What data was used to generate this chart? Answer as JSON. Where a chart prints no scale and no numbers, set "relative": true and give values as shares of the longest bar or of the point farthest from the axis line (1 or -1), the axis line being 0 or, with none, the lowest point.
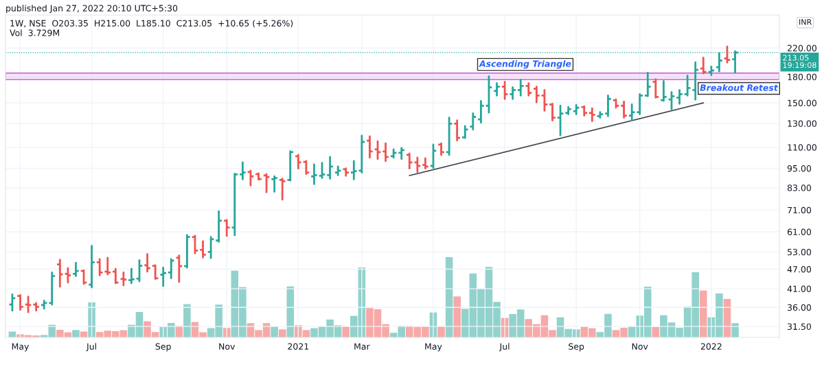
{
  "chart_data": [
    {
      "type": "candlestick",
      "title": "1W, NSE  O203.35  H215.00  L185.10  C213.05  +10.65 (+5.26%)",
      "subtitle": "Vol  3.729M",
      "annotations": [
        "published Jan 27, 2022 20:10 UTC+5:30",
        "INR",
        "Ascending Triangle",
        "Breakout Retest"
      ],
      "x": [
        "2020-04-27",
        "2020-05-04",
        "2020-05-11",
        "2020-05-18",
        "2020-05-25",
        "2020-06-01",
        "2020-06-08",
        "2020-06-15",
        "2020-06-22",
        "2020-06-29",
        "2020-07-06",
        "2020-07-13",
        "2020-07-20",
        "2020-07-27",
        "2020-08-03",
        "2020-08-10",
        "2020-08-17",
        "2020-08-24",
        "2020-08-31",
        "2020-09-07",
        "2020-09-14",
        "2020-09-21",
        "2020-09-28",
        "2020-10-05",
        "2020-10-12",
        "2020-10-19",
        "2020-10-26",
        "2020-11-02",
        "2020-11-09",
        "2020-11-16",
        "2020-11-23",
        "2020-11-30",
        "2020-12-07",
        "2020-12-14",
        "2020-12-21",
        "2020-12-28",
        "2021-01-04",
        "2021-01-11",
        "2021-01-18",
        "2021-01-25",
        "2021-02-01",
        "2021-02-08",
        "2021-02-15",
        "2021-02-22",
        "2021-03-01",
        "2021-03-08",
        "2021-03-15",
        "2021-03-22",
        "2021-03-29",
        "2021-04-05",
        "2021-04-12",
        "2021-04-19",
        "2021-04-26",
        "2021-05-03",
        "2021-05-10",
        "2021-05-17",
        "2021-05-24",
        "2021-05-31",
        "2021-06-07",
        "2021-06-14",
        "2021-06-21",
        "2021-06-28",
        "2021-07-05",
        "2021-07-12",
        "2021-07-19",
        "2021-07-26",
        "2021-08-02",
        "2021-08-09",
        "2021-08-16",
        "2021-08-23",
        "2021-08-30",
        "2021-09-06",
        "2021-09-13",
        "2021-09-20",
        "2021-09-27",
        "2021-10-04",
        "2021-10-11",
        "2021-10-18",
        "2021-10-25",
        "2021-11-01",
        "2021-11-08",
        "2021-11-15",
        "2021-11-22",
        "2021-11-29",
        "2021-12-06",
        "2021-12-13",
        "2021-12-20",
        "2021-12-27",
        "2022-01-03",
        "2022-01-10",
        "2022-01-17",
        "2022-01-24"
      ],
      "ohlc": [
        [
          36.7,
          39.4,
          35.2,
          38.4
        ],
        [
          39.0,
          39.2,
          35.4,
          36.1
        ],
        [
          36.7,
          38.8,
          34.8,
          36.6
        ],
        [
          36.7,
          37.1,
          35.2,
          36.1
        ],
        [
          36.6,
          37.7,
          35.7,
          37.1
        ],
        [
          37.1,
          45.9,
          36.7,
          44.8
        ],
        [
          48.6,
          50.2,
          41.6,
          45.3
        ],
        [
          45.5,
          47.3,
          42.8,
          45.0
        ],
        [
          45.5,
          49.1,
          44.8,
          46.4
        ],
        [
          46.4,
          46.6,
          42.4,
          42.8
        ],
        [
          42.2,
          55.3,
          41.4,
          49.3
        ],
        [
          49.3,
          50.4,
          45.0,
          45.9
        ],
        [
          46.2,
          50.9,
          45.3,
          45.9
        ],
        [
          46.2,
          47.1,
          42.6,
          42.8
        ],
        [
          43.9,
          45.9,
          42.0,
          43.7
        ],
        [
          43.5,
          47.1,
          42.6,
          43.8
        ],
        [
          44.0,
          50.0,
          43.2,
          48.1
        ],
        [
          48.3,
          52.2,
          46.2,
          47.3
        ],
        [
          48.1,
          48.3,
          43.9,
          44.1
        ],
        [
          45.2,
          47.5,
          41.8,
          45.7
        ],
        [
          45.9,
          50.4,
          44.1,
          49.9
        ],
        [
          50.9,
          51.7,
          43.0,
          48.0
        ],
        [
          48.0,
          59.6,
          47.5,
          58.8
        ],
        [
          58.8,
          59.3,
          52.5,
          53.5
        ],
        [
          53.8,
          57.1,
          51.0,
          52.0
        ],
        [
          53.0,
          58.8,
          50.8,
          57.9
        ],
        [
          57.4,
          70.4,
          56.9,
          65.9
        ],
        [
          65.9,
          66.2,
          59.3,
          62.8
        ],
        [
          62.8,
          91.5,
          59.6,
          91.0
        ],
        [
          91.0,
          99.0,
          88.0,
          92.2
        ],
        [
          92.6,
          93.5,
          84.3,
          89.8
        ],
        [
          91.3,
          91.7,
          87.8,
          88.1
        ],
        [
          90.4,
          91.3,
          80.4,
          89.4
        ],
        [
          88.0,
          89.8,
          80.7,
          88.8
        ],
        [
          87.6,
          88.4,
          76.4,
          86.8
        ],
        [
          87.6,
          107.0,
          87.2,
          106.4
        ],
        [
          103.4,
          104.3,
          94.9,
          99.0
        ],
        [
          99.4,
          99.9,
          91.3,
          92.2
        ],
        [
          89.8,
          97.6,
          85.1,
          90.6
        ],
        [
          90.2,
          98.6,
          88.8,
          91.0
        ],
        [
          90.6,
          102.9,
          88.4,
          96.2
        ],
        [
          92.2,
          96.2,
          90.6,
          93.5
        ],
        [
          94.4,
          94.9,
          90.2,
          92.2
        ],
        [
          92.2,
          99.9,
          88.0,
          93.1
        ],
        [
          93.5,
          119.3,
          92.2,
          114.2
        ],
        [
          115.2,
          118.7,
          102.4,
          106.9
        ],
        [
          108.4,
          114.7,
          101.4,
          106.4
        ],
        [
          106.9,
          113.1,
          99.9,
          102.9
        ],
        [
          103.4,
          108.4,
          102.4,
          105.9
        ],
        [
          105.9,
          109.5,
          101.4,
          107.9
        ],
        [
          104.3,
          105.4,
          94.9,
          99.0
        ],
        [
          99.0,
          102.4,
          92.6,
          96.7
        ],
        [
          97.2,
          101.9,
          94.9,
          96.2
        ],
        [
          96.7,
          112.1,
          95.3,
          107.4
        ],
        [
          112.1,
          113.1,
          104.3,
          106.4
        ],
        [
          106.4,
          135.3,
          104.3,
          129.7
        ],
        [
          129.7,
          132.7,
          115.4,
          117.4
        ],
        [
          117.9,
          127.6,
          117.4,
          124.6
        ],
        [
          127.1,
          139.4,
          124.6,
          136.0
        ],
        [
          133.6,
          151.9,
          130.8,
          147.0
        ],
        [
          147.0,
          180.5,
          140.2,
          167.2
        ],
        [
          163.0,
          172.0,
          157.9,
          168.0
        ],
        [
          168.0,
          173.7,
          154.2,
          159.4
        ],
        [
          159.4,
          167.2,
          154.2,
          164.0
        ],
        [
          164.0,
          176.3,
          157.9,
          168.8
        ],
        [
          168.8,
          172.0,
          157.9,
          160.8
        ],
        [
          165.5,
          168.0,
          150.5,
          157.9
        ],
        [
          157.9,
          164.0,
          142.0,
          148.4
        ],
        [
          148.4,
          149.1,
          132.7,
          135.3
        ],
        [
          135.3,
          147.0,
          119.6,
          139.2
        ],
        [
          139.8,
          145.7,
          138.6,
          143.6
        ],
        [
          141.6,
          147.7,
          138.6,
          145.0
        ],
        [
          145.7,
          146.3,
          137.3,
          139.8
        ],
        [
          139.8,
          144.3,
          132.1,
          138.0
        ],
        [
          136.7,
          140.5,
          135.3,
          138.6
        ],
        [
          139.2,
          157.9,
          136.7,
          154.2
        ],
        [
          152.8,
          153.5,
          145.0,
          147.0
        ],
        [
          147.0,
          151.3,
          135.3,
          137.3
        ],
        [
          137.3,
          148.4,
          132.7,
          140.5
        ],
        [
          140.5,
          159.4,
          138.6,
          157.9
        ],
        [
          157.9,
          185.0,
          157.1,
          168.0
        ],
        [
          173.7,
          176.9,
          155.6,
          156.3
        ],
        [
          152.8,
          174.5,
          152.1,
          156.3
        ],
        [
          153.5,
          161.6,
          143.6,
          157.1
        ],
        [
          155.6,
          164.0,
          149.1,
          159.4
        ],
        [
          159.4,
          181.4,
          157.9,
          166.4
        ],
        [
          164.0,
          199.0,
          153.5,
          188.8
        ],
        [
          190.6,
          205.7,
          184.3,
          186.1
        ],
        [
          186.1,
          193.3,
          182.0,
          188.0
        ],
        [
          192.4,
          212.0,
          187.0,
          201.6
        ],
        [
          204.5,
          222.1,
          198.8,
          202.4
        ],
        [
          203.35,
          215,
          185.1,
          213.05
        ]
      ],
      "colors": [
        "#26a69a",
        "#ef5350",
        "#ef5350",
        "#ef5350",
        "#26a69a",
        "#26a69a",
        "#ef5350",
        "#ef5350",
        "#26a69a",
        "#ef5350",
        "#26a69a",
        "#ef5350",
        "#ef5350",
        "#ef5350",
        "#ef5350",
        "#26a69a",
        "#26a69a",
        "#ef5350",
        "#ef5350",
        "#26a69a",
        "#26a69a",
        "#ef5350",
        "#26a69a",
        "#ef5350",
        "#ef5350",
        "#26a69a",
        "#26a69a",
        "#ef5350",
        "#26a69a",
        "#26a69a",
        "#ef5350",
        "#ef5350",
        "#ef5350",
        "#26a69a",
        "#ef5350",
        "#26a69a",
        "#ef5350",
        "#ef5350",
        "#26a69a",
        "#26a69a",
        "#26a69a",
        "#26a69a",
        "#ef5350",
        "#26a69a",
        "#26a69a",
        "#ef5350",
        "#ef5350",
        "#ef5350",
        "#26a69a",
        "#26a69a",
        "#ef5350",
        "#ef5350",
        "#ef5350",
        "#26a69a",
        "#ef5350",
        "#26a69a",
        "#ef5350",
        "#26a69a",
        "#26a69a",
        "#26a69a",
        "#26a69a",
        "#26a69a",
        "#ef5350",
        "#26a69a",
        "#26a69a",
        "#ef5350",
        "#ef5350",
        "#ef5350",
        "#ef5350",
        "#26a69a",
        "#26a69a",
        "#26a69a",
        "#ef5350",
        "#ef5350",
        "#26a69a",
        "#26a69a",
        "#ef5350",
        "#ef5350",
        "#26a69a",
        "#26a69a",
        "#26a69a",
        "#ef5350",
        "#26a69a",
        "#26a69a",
        "#26a69a",
        "#26a69a",
        "#26a69a",
        "#ef5350",
        "#26a69a",
        "#26a69a",
        "#ef5350",
        "#26a69a"
      ],
      "series": [
        {
          "type": "line",
          "x": [
            "2021-04-12",
            "2021-12-27"
          ],
          "values": [
            90.3,
            150.0
          ],
          "color": "#434651"
        }
      ],
      "xlim": [
        "2020-04-21",
        "2022-03-04"
      ],
      "xticks": [
        {
          "value": "2020-05-04",
          "label": "May"
        },
        {
          "value": "2020-07-06",
          "label": "Jul"
        },
        {
          "value": "2020-09-07",
          "label": "Sep"
        },
        {
          "value": "2020-11-02",
          "label": "Nov"
        },
        {
          "value": "2021-01-04",
          "label": "2021"
        },
        {
          "value": "2021-03-01",
          "label": "Mar"
        },
        {
          "value": "2021-05-03",
          "label": "May"
        },
        {
          "value": "2021-07-05",
          "label": "Jul"
        },
        {
          "value": "2021-09-06",
          "label": "Sep"
        },
        {
          "value": "2021-11-01",
          "label": "Nov"
        },
        {
          "value": "2022-01-03",
          "label": "2022"
        }
      ],
      "log": true,
      "ylim": [
        29.2,
        276.8
      ],
      "yticks": [
        {
          "value": 31.5,
          "label": "31.50"
        },
        {
          "value": 36,
          "label": "36.00"
        },
        {
          "value": 41,
          "label": "41.00"
        },
        {
          "value": 47,
          "label": "47.00"
        },
        {
          "value": 53,
          "label": "53.00"
        },
        {
          "value": 61,
          "label": "61.00"
        },
        {
          "value": 71,
          "label": "71.00"
        },
        {
          "value": 83,
          "label": "83.00"
        },
        {
          "value": 95,
          "label": "95.00"
        },
        {
          "value": 110,
          "label": "110.00"
        },
        {
          "value": 130,
          "label": "130.00"
        },
        {
          "value": 150,
          "label": "150.00"
        },
        {
          "value": 180,
          "label": "180.00"
        },
        {
          "value": 220,
          "label": "220.00"
        }
      ],
      "grid": true,
      "ref_lines": [
        {
          "axis": "y",
          "value": 213.05,
          "label": "213.05\n19:19:08",
          "color": "#26a69a",
          "line_style": "dotted"
        }
      ],
      "bands": [
        {
          "axis": "y",
          "from": 176.5,
          "to": 184.6,
          "color": "#cc66dd"
        }
      ]
    },
    {
      "type": "bar",
      "relative": true,
      "tick_labels": false,
      "x": [
        "2020-04-27",
        "2020-05-04",
        "2020-05-11",
        "2020-05-18",
        "2020-05-25",
        "2020-06-01",
        "2020-06-08",
        "2020-06-15",
        "2020-06-22",
        "2020-06-29",
        "2020-07-06",
        "2020-07-13",
        "2020-07-20",
        "2020-07-27",
        "2020-08-03",
        "2020-08-10",
        "2020-08-17",
        "2020-08-24",
        "2020-08-31",
        "2020-09-07",
        "2020-09-14",
        "2020-09-21",
        "2020-09-28",
        "2020-10-05",
        "2020-10-12",
        "2020-10-19",
        "2020-10-26",
        "2020-11-02",
        "2020-11-09",
        "2020-11-16",
        "2020-11-23",
        "2020-11-30",
        "2020-12-07",
        "2020-12-14",
        "2020-12-21",
        "2020-12-28",
        "2021-01-04",
        "2021-01-11",
        "2021-01-18",
        "2021-01-25",
        "2021-02-01",
        "2021-02-08",
        "2021-02-15",
        "2021-02-22",
        "2021-03-01",
        "2021-03-08",
        "2021-03-15",
        "2021-03-22",
        "2021-03-29",
        "2021-04-05",
        "2021-04-12",
        "2021-04-19",
        "2021-04-26",
        "2021-05-03",
        "2021-05-10",
        "2021-05-17",
        "2021-05-24",
        "2021-05-31",
        "2021-06-07",
        "2021-06-14",
        "2021-06-21",
        "2021-06-28",
        "2021-07-05",
        "2021-07-12",
        "2021-07-19",
        "2021-07-26",
        "2021-08-02",
        "2021-08-09",
        "2021-08-16",
        "2021-08-23",
        "2021-08-30",
        "2021-09-06",
        "2021-09-13",
        "2021-09-20",
        "2021-09-27",
        "2021-10-04",
        "2021-10-11",
        "2021-10-18",
        "2021-10-25",
        "2021-11-01",
        "2021-11-08",
        "2021-11-15",
        "2021-11-22",
        "2021-11-29",
        "2021-12-06",
        "2021-12-13",
        "2021-12-20",
        "2021-12-27",
        "2022-01-03",
        "2022-01-10",
        "2022-01-17",
        "2022-01-24"
      ],
      "values": [
        0.072,
        0.038,
        0.029,
        0.023,
        0.029,
        0.157,
        0.094,
        0.063,
        0.091,
        0.072,
        0.436,
        0.066,
        0.083,
        0.077,
        0.089,
        0.157,
        0.316,
        0.2,
        0.066,
        0.134,
        0.179,
        0.143,
        0.414,
        0.191,
        0.063,
        0.115,
        0.408,
        0.117,
        0.832,
        0.627,
        0.177,
        0.091,
        0.177,
        0.137,
        0.1,
        0.635,
        0.151,
        0.091,
        0.114,
        0.137,
        0.222,
        0.151,
        0.137,
        0.268,
        0.872,
        0.365,
        0.35,
        0.165,
        0.057,
        0.143,
        0.143,
        0.134,
        0.137,
        0.31,
        0.137,
        1,
        0.51,
        0.356,
        0.797,
        0.607,
        0.878,
        0.442,
        0.242,
        0.291,
        0.348,
        0.228,
        0.165,
        0.276,
        0.091,
        0.25,
        0.105,
        0.1,
        0.134,
        0.114,
        0.066,
        0.293,
        0.091,
        0.12,
        0.134,
        0.271,
        0.632,
        0.128,
        0.276,
        0.185,
        0.12,
        0.385,
        0.812,
        0.584,
        0.25,
        0.547,
        0.479,
        0.177
      ],
      "colors": [
        "#92d2cc",
        "#f7a9a7",
        "#f7a9a7",
        "#f7a9a7",
        "#92d2cc",
        "#92d2cc",
        "#f7a9a7",
        "#f7a9a7",
        "#92d2cc",
        "#f7a9a7",
        "#92d2cc",
        "#f7a9a7",
        "#f7a9a7",
        "#f7a9a7",
        "#f7a9a7",
        "#92d2cc",
        "#92d2cc",
        "#f7a9a7",
        "#f7a9a7",
        "#92d2cc",
        "#92d2cc",
        "#f7a9a7",
        "#92d2cc",
        "#f7a9a7",
        "#f7a9a7",
        "#92d2cc",
        "#92d2cc",
        "#f7a9a7",
        "#92d2cc",
        "#92d2cc",
        "#f7a9a7",
        "#f7a9a7",
        "#f7a9a7",
        "#92d2cc",
        "#f7a9a7",
        "#92d2cc",
        "#f7a9a7",
        "#f7a9a7",
        "#92d2cc",
        "#92d2cc",
        "#92d2cc",
        "#92d2cc",
        "#f7a9a7",
        "#92d2cc",
        "#92d2cc",
        "#f7a9a7",
        "#f7a9a7",
        "#f7a9a7",
        "#92d2cc",
        "#92d2cc",
        "#f7a9a7",
        "#f7a9a7",
        "#f7a9a7",
        "#92d2cc",
        "#f7a9a7",
        "#92d2cc",
        "#f7a9a7",
        "#92d2cc",
        "#92d2cc",
        "#92d2cc",
        "#92d2cc",
        "#92d2cc",
        "#f7a9a7",
        "#92d2cc",
        "#92d2cc",
        "#f7a9a7",
        "#f7a9a7",
        "#f7a9a7",
        "#f7a9a7",
        "#92d2cc",
        "#92d2cc",
        "#92d2cc",
        "#f7a9a7",
        "#f7a9a7",
        "#92d2cc",
        "#92d2cc",
        "#f7a9a7",
        "#f7a9a7",
        "#92d2cc",
        "#92d2cc",
        "#92d2cc",
        "#f7a9a7",
        "#92d2cc",
        "#92d2cc",
        "#92d2cc",
        "#92d2cc",
        "#92d2cc",
        "#f7a9a7",
        "#92d2cc",
        "#92d2cc",
        "#f7a9a7",
        "#92d2cc"
      ],
      "xlim": [
        "2020-04-21",
        "2022-03-04"
      ]
    }
  ]
}
